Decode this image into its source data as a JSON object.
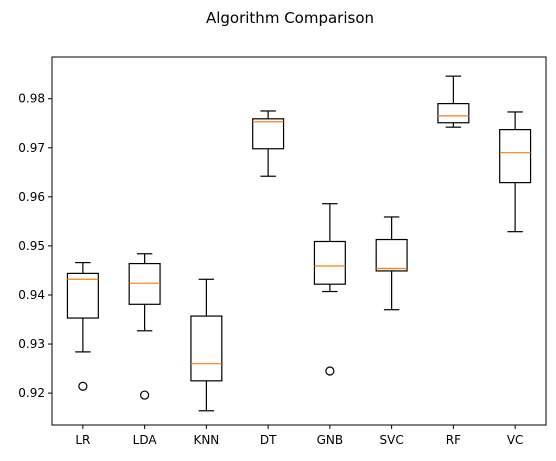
{
  "chart_data": {
    "type": "boxplot",
    "title": "Algorithm Comparison",
    "xlabel": "",
    "ylabel": "",
    "ylim": [
      0.9135,
      0.9885
    ],
    "yticks": [
      0.92,
      0.93,
      0.94,
      0.95,
      0.96,
      0.97,
      0.98
    ],
    "ytick_labels": [
      "0.92",
      "0.93",
      "0.94",
      "0.95",
      "0.96",
      "0.97",
      "0.98"
    ],
    "grid": false,
    "categories": [
      "LR",
      "LDA",
      "KNN",
      "DT",
      "GNB",
      "SVC",
      "RF",
      "VC"
    ],
    "series": [
      {
        "label": "LR",
        "whisker_low": 0.9284,
        "q1": 0.9353,
        "median": 0.9432,
        "q3": 0.9444,
        "whisker_high": 0.9466,
        "outliers": [
          0.9214
        ]
      },
      {
        "label": "LDA",
        "whisker_low": 0.9327,
        "q1": 0.9381,
        "median": 0.9424,
        "q3": 0.9464,
        "whisker_high": 0.9484,
        "outliers": [
          0.9196
        ]
      },
      {
        "label": "KNN",
        "whisker_low": 0.9164,
        "q1": 0.9225,
        "median": 0.926,
        "q3": 0.9357,
        "whisker_high": 0.9432,
        "outliers": []
      },
      {
        "label": "DT",
        "whisker_low": 0.9642,
        "q1": 0.9698,
        "median": 0.9753,
        "q3": 0.9759,
        "whisker_high": 0.9775,
        "outliers": []
      },
      {
        "label": "GNB",
        "whisker_low": 0.9407,
        "q1": 0.9422,
        "median": 0.9459,
        "q3": 0.9509,
        "whisker_high": 0.9586,
        "outliers": [
          0.9245
        ]
      },
      {
        "label": "SVC",
        "whisker_low": 0.937,
        "q1": 0.9449,
        "median": 0.9454,
        "q3": 0.9513,
        "whisker_high": 0.9559,
        "outliers": []
      },
      {
        "label": "RF",
        "whisker_low": 0.9742,
        "q1": 0.9751,
        "median": 0.9765,
        "q3": 0.979,
        "whisker_high": 0.9846,
        "outliers": []
      },
      {
        "label": "VC",
        "whisker_low": 0.9529,
        "q1": 0.9629,
        "median": 0.969,
        "q3": 0.9737,
        "whisker_high": 0.9773,
        "outliers": []
      }
    ],
    "colors": {
      "box": "#000000",
      "median": "#ff7f0e",
      "axes": "#000000",
      "background": "#ffffff"
    }
  }
}
